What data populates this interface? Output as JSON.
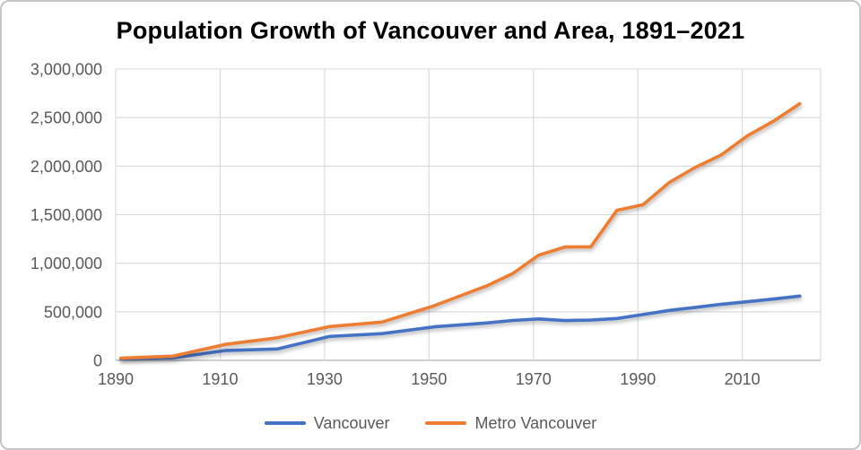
{
  "chart": {
    "title": "Population Growth of Vancouver and Area, 1891–2021"
  },
  "chart_data": {
    "type": "line",
    "title": "Population Growth of Vancouver and Area, 1891–2021",
    "xlabel": "",
    "ylabel": "",
    "x": [
      1891,
      1901,
      1911,
      1921,
      1931,
      1941,
      1951,
      1956,
      1961,
      1966,
      1971,
      1976,
      1981,
      1986,
      1991,
      1996,
      2001,
      2006,
      2011,
      2016,
      2021
    ],
    "series": [
      {
        "name": "Vancouver",
        "color": "#4472C4",
        "values": [
          13709,
          27010,
          100401,
          117217,
          246593,
          275353,
          344833,
          365844,
          384522,
          410375,
          426256,
          410188,
          414281,
          431147,
          471844,
          514008,
          545671,
          578041,
          603502,
          631486,
          662248
        ]
      },
      {
        "name": "Metro Vancouver",
        "color": "#ED7D31",
        "values": [
          21887,
          42926,
          164020,
          232597,
          347709,
          393898,
          562047,
          665017,
          765000,
          892286,
          1082352,
          1166348,
          1169831,
          1545000,
          1602502,
          1831665,
          1986965,
          2116581,
          2313328,
          2463431,
          2642825
        ]
      }
    ],
    "xlim": [
      1890,
      2025
    ],
    "ylim": [
      0,
      3000000
    ],
    "yticks": {
      "values": [
        0,
        500000,
        1000000,
        1500000,
        2000000,
        2500000,
        3000000
      ],
      "labels": [
        "0",
        "500,000",
        "1,000,000",
        "1,500,000",
        "2,000,000",
        "2,500,000",
        "3,000,000"
      ]
    },
    "xticks": {
      "values": [
        1890,
        1910,
        1930,
        1950,
        1970,
        1990,
        2010
      ],
      "labels": [
        "1890",
        "1910",
        "1930",
        "1950",
        "1970",
        "1990",
        "2010"
      ]
    },
    "grid": true,
    "legend_position": "bottom"
  },
  "colors": {
    "gridline": "#d9d9d9",
    "axis_line": "#bfbfbf",
    "tick_text": "#595959",
    "vancouver": "#4472C4",
    "metro_vancouver": "#ED7D31"
  }
}
